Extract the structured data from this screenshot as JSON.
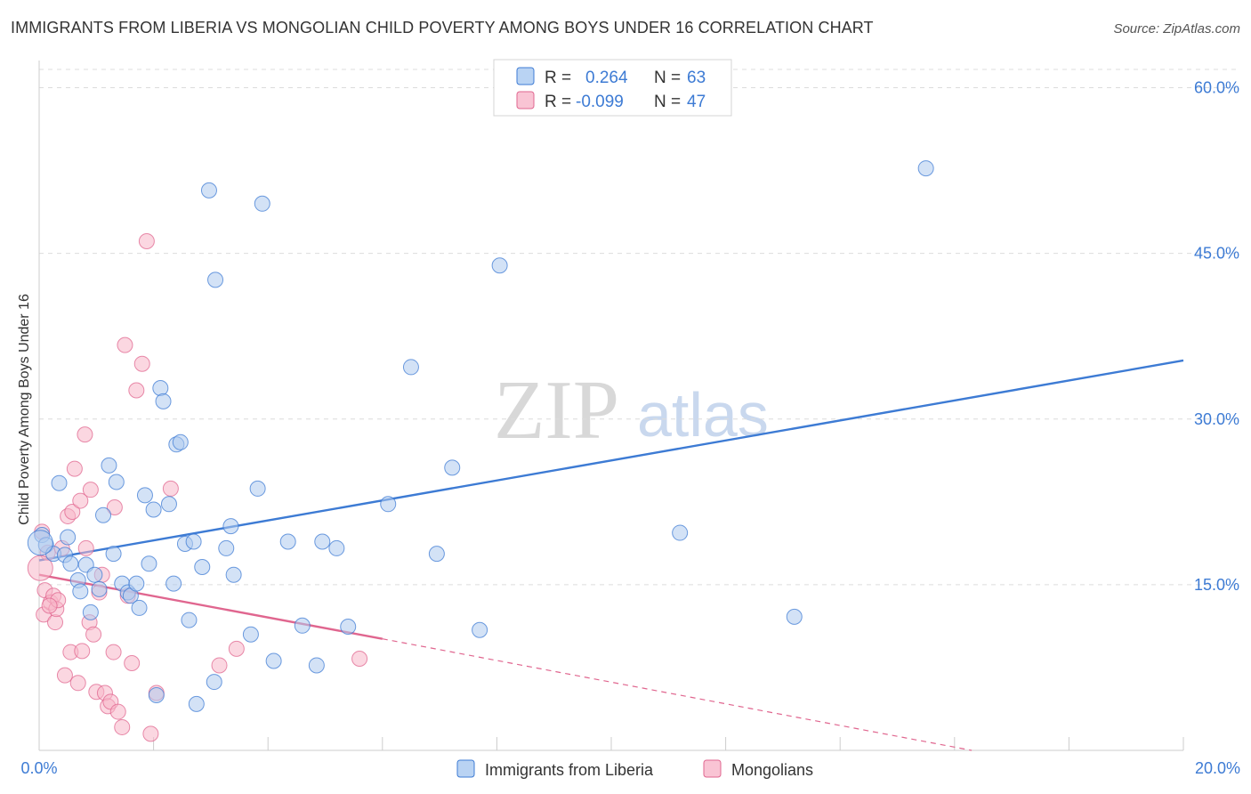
{
  "title": "IMMIGRANTS FROM LIBERIA VS MONGOLIAN CHILD POVERTY AMONG BOYS UNDER 16 CORRELATION CHART",
  "source": "Source: ZipAtlas.com",
  "watermark": {
    "zip": "ZIP",
    "atlas": "atlas"
  },
  "colors": {
    "blue": "#3d7bd4",
    "blue_fill": "#aecbef",
    "pink": "#e0668f",
    "pink_fill": "#f7b6c9",
    "axis_text": "#3d7bd4"
  },
  "legend": {
    "series": [
      {
        "r_label": "R =",
        "r_value": "0.264",
        "n_label": "N =",
        "n_value": "63"
      },
      {
        "r_label": "R =",
        "r_value": "-0.099",
        "n_label": "N =",
        "n_value": "47"
      }
    ]
  },
  "chart_data": {
    "type": "scatter",
    "title": "IMMIGRANTS FROM LIBERIA VS MONGOLIAN CHILD POVERTY AMONG BOYS UNDER 16 CORRELATION CHART",
    "xlabel": "",
    "ylabel": "Child Poverty Among Boys Under 16",
    "xlim": [
      0,
      20
    ],
    "ylim": [
      0,
      60
    ],
    "x_tick_labels": [
      "0.0%",
      "20.0%"
    ],
    "y_ticks": [
      15,
      30,
      45,
      60
    ],
    "y_tick_labels": [
      "15.0%",
      "30.0%",
      "45.0%",
      "60.0%"
    ],
    "series": [
      {
        "name": "Immigrants from Liberia",
        "color": "#3d7bd4",
        "trend": {
          "x0": 0,
          "y0": 17.2,
          "x1": 20,
          "y1": 35.3,
          "dashed_to": null
        },
        "points": [
          [
            0.05,
            19.5
          ],
          [
            0.12,
            18.6
          ],
          [
            0.25,
            17.8
          ],
          [
            0.35,
            24.2
          ],
          [
            0.45,
            17.7
          ],
          [
            0.5,
            19.3
          ],
          [
            0.55,
            16.9
          ],
          [
            0.68,
            15.4
          ],
          [
            0.72,
            14.4
          ],
          [
            0.82,
            16.8
          ],
          [
            0.9,
            12.5
          ],
          [
            0.97,
            15.9
          ],
          [
            1.05,
            14.6
          ],
          [
            1.12,
            21.3
          ],
          [
            1.22,
            25.8
          ],
          [
            1.3,
            17.8
          ],
          [
            1.35,
            24.3
          ],
          [
            1.45,
            15.1
          ],
          [
            1.55,
            14.3
          ],
          [
            1.6,
            14.0
          ],
          [
            1.7,
            15.1
          ],
          [
            1.75,
            12.9
          ],
          [
            1.85,
            23.1
          ],
          [
            1.92,
            16.9
          ],
          [
            2.0,
            21.8
          ],
          [
            2.05,
            5.0
          ],
          [
            2.12,
            32.8
          ],
          [
            2.17,
            31.6
          ],
          [
            2.27,
            22.3
          ],
          [
            2.35,
            15.1
          ],
          [
            2.4,
            27.7
          ],
          [
            2.47,
            27.9
          ],
          [
            2.55,
            18.7
          ],
          [
            2.62,
            11.8
          ],
          [
            2.7,
            18.9
          ],
          [
            2.75,
            4.2
          ],
          [
            2.85,
            16.6
          ],
          [
            2.97,
            50.7
          ],
          [
            3.08,
            42.6
          ],
          [
            3.06,
            6.2
          ],
          [
            3.27,
            18.3
          ],
          [
            3.35,
            20.3
          ],
          [
            3.4,
            15.9
          ],
          [
            3.7,
            10.5
          ],
          [
            3.82,
            23.7
          ],
          [
            3.9,
            49.5
          ],
          [
            4.1,
            8.1
          ],
          [
            4.35,
            18.9
          ],
          [
            4.6,
            11.3
          ],
          [
            4.85,
            7.7
          ],
          [
            4.95,
            18.9
          ],
          [
            5.2,
            18.3
          ],
          [
            5.4,
            11.2
          ],
          [
            6.1,
            22.3
          ],
          [
            6.5,
            34.7
          ],
          [
            6.95,
            17.8
          ],
          [
            7.22,
            25.6
          ],
          [
            7.7,
            10.9
          ],
          [
            8.05,
            43.9
          ],
          [
            11.2,
            19.7
          ],
          [
            13.2,
            12.1
          ],
          [
            15.5,
            52.7
          ],
          [
            0.02,
            18.8
          ]
        ]
      },
      {
        "name": "Mongolians",
        "color": "#e0668f",
        "trend": {
          "x0": 0,
          "y0": 15.9,
          "x1": 6.0,
          "y1": 10.1,
          "dashed_to": {
            "x": 16.3,
            "y": 0
          }
        },
        "points": [
          [
            0.05,
            19.8
          ],
          [
            0.08,
            12.3
          ],
          [
            0.1,
            14.5
          ],
          [
            0.15,
            17.9
          ],
          [
            0.2,
            13.4
          ],
          [
            0.25,
            14.0
          ],
          [
            0.28,
            11.6
          ],
          [
            0.3,
            12.8
          ],
          [
            0.33,
            13.6
          ],
          [
            0.4,
            18.3
          ],
          [
            0.45,
            6.8
          ],
          [
            0.5,
            21.2
          ],
          [
            0.55,
            8.9
          ],
          [
            0.58,
            21.6
          ],
          [
            0.62,
            25.5
          ],
          [
            0.68,
            6.1
          ],
          [
            0.72,
            22.6
          ],
          [
            0.75,
            9.0
          ],
          [
            0.8,
            28.6
          ],
          [
            0.82,
            18.3
          ],
          [
            0.88,
            11.6
          ],
          [
            0.9,
            23.6
          ],
          [
            0.95,
            10.5
          ],
          [
            1.0,
            5.3
          ],
          [
            1.05,
            14.3
          ],
          [
            1.1,
            15.9
          ],
          [
            1.15,
            5.2
          ],
          [
            1.2,
            4.0
          ],
          [
            1.25,
            4.4
          ],
          [
            1.3,
            8.9
          ],
          [
            1.32,
            22.0
          ],
          [
            1.38,
            3.5
          ],
          [
            1.45,
            2.1
          ],
          [
            1.5,
            36.7
          ],
          [
            1.55,
            14.0
          ],
          [
            1.62,
            7.9
          ],
          [
            1.7,
            32.6
          ],
          [
            1.8,
            35.0
          ],
          [
            1.88,
            46.1
          ],
          [
            1.95,
            1.5
          ],
          [
            2.05,
            5.2
          ],
          [
            2.3,
            23.7
          ],
          [
            3.15,
            7.7
          ],
          [
            3.45,
            9.2
          ],
          [
            5.6,
            8.3
          ],
          [
            0.18,
            13.1
          ],
          [
            0.02,
            16.5
          ]
        ]
      }
    ],
    "legend_position": "top-center",
    "grid": true
  }
}
